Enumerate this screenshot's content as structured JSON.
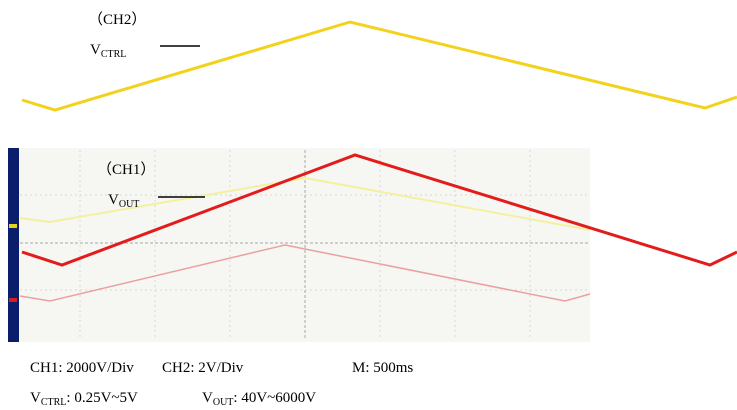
{
  "waveform_labels": {
    "ch2": {
      "channel": "（CH2）",
      "symbol": "V",
      "subscript": "CTRL"
    },
    "ch1": {
      "channel": "（CH1）",
      "symbol": "V",
      "subscript": "OUT"
    }
  },
  "settings": {
    "line1": [
      "CH1: 2000V/Div",
      "CH2: 2V/Div",
      "M: 500ms"
    ],
    "line2": [
      {
        "symbol": "V",
        "subscript": "CTRL",
        "text": ": 0.25V~5V"
      },
      {
        "symbol": "V",
        "subscript": "OUT",
        "text": ": 40V~6000V"
      }
    ]
  }
}
